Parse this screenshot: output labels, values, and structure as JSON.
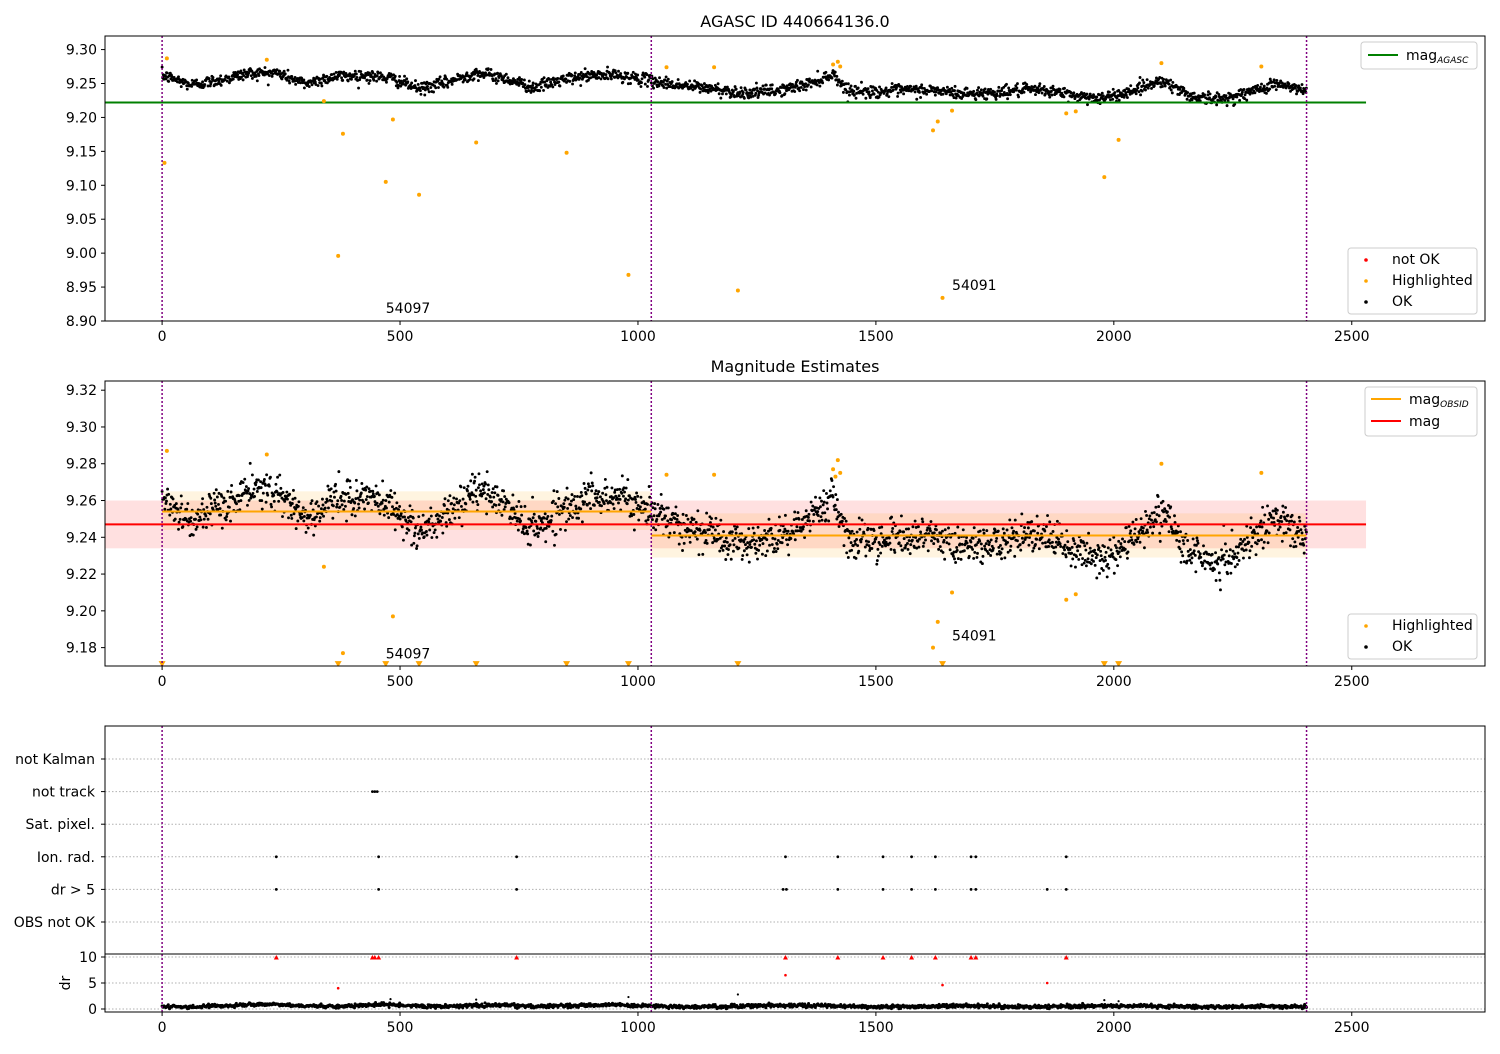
{
  "figure": {
    "width": 1500,
    "height": 1050,
    "colors": {
      "ok": "#000000",
      "highlighted": "#ffa500",
      "not_ok": "#ff0000",
      "mag_agasc": "#008000",
      "mag_obsid": "#ffa500",
      "mag": "#ff0000",
      "obsid_boundary": "#800080",
      "grid": "#b0b0b0"
    }
  },
  "chart_data": [
    {
      "id": "top",
      "type": "scatter",
      "title": "AGASC ID 440664136.0",
      "xlabel": "",
      "ylabel": "",
      "xlim": [
        -120,
        2780
      ],
      "ylim": [
        8.9,
        9.32
      ],
      "xticks": [
        0,
        500,
        1000,
        1500,
        2000,
        2500
      ],
      "yticks": [
        8.9,
        8.95,
        9.0,
        9.05,
        9.1,
        9.15,
        9.2,
        9.25,
        9.3
      ],
      "ytick_labels": [
        "8.90",
        "8.95",
        "9.00",
        "9.05",
        "9.10",
        "9.15",
        "9.20",
        "9.25",
        "9.30"
      ],
      "grid": false,
      "legend_upper": {
        "placement": "top-right",
        "entries": [
          {
            "label": "mag",
            "sub": "AGASC",
            "color": "#008000",
            "kind": "line"
          }
        ]
      },
      "legend_lower": {
        "placement": "bottom-right",
        "entries": [
          {
            "label": "not OK",
            "color": "#ff0000",
            "kind": "dot"
          },
          {
            "label": "Highlighted",
            "color": "#ffa500",
            "kind": "dot"
          },
          {
            "label": "OK",
            "color": "#000000",
            "kind": "dot"
          }
        ]
      },
      "obsid_boundaries": [
        0,
        1028,
        2405
      ],
      "lines": [
        {
          "name": "mag_AGASC",
          "x": [
            -120,
            2530
          ],
          "y": [
            9.222,
            9.222
          ]
        }
      ],
      "ok_segments": [
        {
          "x": [
            0,
            20,
            60,
            120,
            180,
            240,
            300,
            360,
            420,
            480,
            540,
            600,
            660,
            720,
            780,
            840,
            900,
            960,
            1028,
            1080,
            1150,
            1220,
            1300,
            1360,
            1410,
            1440,
            1500,
            1560,
            1620,
            1680,
            1740,
            1800,
            1860,
            1920,
            1980,
            2040,
            2100,
            2160,
            2220,
            2280,
            2340,
            2405
          ],
          "y": [
            9.262,
            9.258,
            9.248,
            9.255,
            9.265,
            9.266,
            9.25,
            9.26,
            9.262,
            9.258,
            9.242,
            9.252,
            9.266,
            9.258,
            9.244,
            9.255,
            9.262,
            9.262,
            9.254,
            9.248,
            9.243,
            9.236,
            9.24,
            9.25,
            9.264,
            9.24,
            9.238,
            9.24,
            9.24,
            9.235,
            9.236,
            9.24,
            9.24,
            9.232,
            9.228,
            9.24,
            9.255,
            9.232,
            9.226,
            9.236,
            9.25,
            9.238
          ],
          "spread": 0.008
        }
      ],
      "highlighted": {
        "x": [
          5,
          10,
          220,
          340,
          370,
          380,
          470,
          485,
          540,
          660,
          850,
          980,
          1060,
          1160,
          1210,
          1410,
          1420,
          1425,
          1620,
          1630,
          1640,
          1660,
          1900,
          1920,
          1980,
          2010,
          2100,
          2310
        ],
        "y": [
          9.133,
          9.287,
          9.285,
          9.224,
          8.996,
          9.176,
          9.105,
          9.197,
          9.086,
          9.163,
          9.148,
          8.968,
          9.274,
          9.274,
          8.945,
          9.278,
          9.282,
          9.275,
          9.181,
          9.194,
          8.934,
          9.21,
          9.206,
          9.209,
          9.112,
          9.167,
          9.28,
          9.275
        ]
      },
      "not_ok": {
        "x": [],
        "y": []
      },
      "annotations": [
        {
          "text": "54097",
          "x": 470,
          "y": 8.912
        },
        {
          "text": "54091",
          "x": 1660,
          "y": 8.946
        }
      ]
    },
    {
      "id": "middle",
      "type": "scatter",
      "title": "Magnitude Estimates",
      "xlabel": "",
      "ylabel": "",
      "xlim": [
        -120,
        2780
      ],
      "ylim": [
        9.17,
        9.325
      ],
      "xticks": [
        0,
        500,
        1000,
        1500,
        2000,
        2500
      ],
      "yticks": [
        9.18,
        9.2,
        9.22,
        9.24,
        9.26,
        9.28,
        9.3,
        9.32
      ],
      "ytick_labels": [
        "9.18",
        "9.20",
        "9.22",
        "9.24",
        "9.26",
        "9.28",
        "9.30",
        "9.32"
      ],
      "grid": false,
      "legend_upper": {
        "placement": "top-right",
        "entries": [
          {
            "label": "mag",
            "sub": "OBSID",
            "color": "#ffa500",
            "kind": "line"
          },
          {
            "label": "mag",
            "color": "#ff0000",
            "kind": "line"
          }
        ]
      },
      "legend_lower": {
        "placement": "bottom-right",
        "entries": [
          {
            "label": "Highlighted",
            "color": "#ffa500",
            "kind": "dot"
          },
          {
            "label": "OK",
            "color": "#000000",
            "kind": "dot"
          }
        ]
      },
      "obsid_boundaries": [
        0,
        1028,
        2405
      ],
      "bands": [
        {
          "name": "mag",
          "x": [
            -120,
            2530
          ],
          "y_low": 9.234,
          "y_high": 9.26,
          "color": "#ff0000",
          "opacity": 0.12
        },
        {
          "name": "mag_OBSID_1",
          "x": [
            0,
            1028
          ],
          "y_low": 9.244,
          "y_high": 9.265,
          "color": "#ffa500",
          "opacity": 0.12
        },
        {
          "name": "mag_OBSID_2",
          "x": [
            1028,
            2405
          ],
          "y_low": 9.229,
          "y_high": 9.253,
          "color": "#ffa500",
          "opacity": 0.12
        }
      ],
      "lines": [
        {
          "name": "mag",
          "x": [
            -120,
            2530
          ],
          "y": [
            9.247,
            9.247
          ],
          "color": "#ff0000"
        },
        {
          "name": "mag_OBSID_1",
          "x": [
            0,
            1028
          ],
          "y": [
            9.254,
            9.254
          ],
          "color": "#ffa500"
        },
        {
          "name": "mag_OBSID_2",
          "x": [
            1028,
            2405
          ],
          "y": [
            9.241,
            9.241
          ],
          "color": "#ffa500"
        }
      ],
      "ok_segments": [
        {
          "x": [
            0,
            20,
            60,
            120,
            180,
            240,
            300,
            360,
            420,
            480,
            540,
            600,
            660,
            720,
            780,
            840,
            900,
            960,
            1028,
            1080,
            1150,
            1220,
            1300,
            1360,
            1410,
            1440,
            1500,
            1560,
            1620,
            1680,
            1740,
            1800,
            1860,
            1920,
            1980,
            2040,
            2100,
            2160,
            2220,
            2280,
            2340,
            2405
          ],
          "y": [
            9.262,
            9.258,
            9.248,
            9.255,
            9.265,
            9.266,
            9.25,
            9.26,
            9.262,
            9.258,
            9.242,
            9.252,
            9.266,
            9.258,
            9.244,
            9.255,
            9.262,
            9.262,
            9.254,
            9.248,
            9.243,
            9.236,
            9.24,
            9.25,
            9.264,
            9.24,
            9.238,
            9.24,
            9.24,
            9.235,
            9.236,
            9.24,
            9.24,
            9.232,
            9.228,
            9.24,
            9.255,
            9.232,
            9.226,
            9.236,
            9.25,
            9.238
          ],
          "spread": 0.009
        }
      ],
      "highlighted": {
        "x": [
          10,
          220,
          340,
          380,
          485,
          1060,
          1160,
          1410,
          1415,
          1420,
          1425,
          1620,
          1630,
          1660,
          1900,
          1920,
          2100,
          2310
        ],
        "y": [
          9.287,
          9.285,
          9.224,
          9.177,
          9.197,
          9.274,
          9.274,
          9.277,
          9.273,
          9.282,
          9.275,
          9.18,
          9.194,
          9.21,
          9.206,
          9.209,
          9.28,
          9.275
        ]
      },
      "below_range_markers": {
        "x": [
          0,
          370,
          470,
          540,
          660,
          850,
          980,
          1210,
          1640,
          1980,
          2010
        ],
        "y_at": 9.171
      },
      "annotations": [
        {
          "text": "54097",
          "x": 470,
          "y": 9.174
        },
        {
          "text": "54091",
          "x": 1660,
          "y": 9.184
        }
      ]
    },
    {
      "id": "flags",
      "type": "scatter",
      "xlabel": "",
      "ylabel": "",
      "xlim": [
        -120,
        2780
      ],
      "grid": true,
      "categories": [
        "not Kalman",
        "not track",
        "Sat. pixel.",
        "Ion. rad.",
        "dr > 5",
        "OBS not OK"
      ],
      "obsid_boundaries": [
        0,
        1028,
        2405
      ],
      "points": [
        {
          "category": "not track",
          "x": [
            442,
            447,
            452
          ]
        },
        {
          "category": "Ion. rad.",
          "x": [
            240,
            455,
            745,
            1310,
            1420,
            1515,
            1575,
            1625,
            1700,
            1710,
            1900
          ]
        },
        {
          "category": "dr > 5",
          "x": [
            240,
            455,
            745,
            1305,
            1312,
            1420,
            1515,
            1575,
            1625,
            1700,
            1710,
            1860,
            1900
          ]
        }
      ]
    },
    {
      "id": "dr",
      "type": "scatter",
      "xlabel": "",
      "ylabel": "dr",
      "xlim": [
        -120,
        2780
      ],
      "ylim": [
        0,
        10
      ],
      "yticks": [
        0,
        5,
        10
      ],
      "ytick_labels": [
        "0",
        "5",
        "10"
      ],
      "xticks": [
        0,
        500,
        1000,
        1500,
        2000,
        2500
      ],
      "grid": true,
      "obsid_boundaries": [
        0,
        1028,
        2405
      ],
      "baseline": {
        "x": [
          0,
          60,
          120,
          180,
          240,
          300,
          360,
          420,
          480,
          540,
          600,
          660,
          720,
          780,
          840,
          900,
          960,
          1028,
          1100,
          1200,
          1300,
          1400,
          1500,
          1600,
          1700,
          1800,
          1900,
          2000,
          2100,
          2200,
          2300,
          2405
        ],
        "y": [
          0.5,
          0.4,
          0.6,
          0.8,
          0.9,
          0.6,
          0.5,
          0.7,
          0.9,
          0.6,
          0.5,
          0.7,
          0.8,
          0.5,
          0.6,
          0.7,
          0.8,
          0.6,
          0.4,
          0.5,
          0.7,
          0.6,
          0.4,
          0.5,
          0.6,
          0.4,
          0.5,
          0.6,
          0.5,
          0.4,
          0.5,
          0.4
        ],
        "spread": 0.35
      },
      "ok_points": {
        "x": [
          480,
          660,
          980,
          1210,
          1980,
          2010
        ],
        "y": [
          1.9,
          1.8,
          2.3,
          2.8,
          1.7,
          1.5
        ]
      },
      "not_ok_points": {
        "x": [
          370,
          1310,
          1640,
          1860
        ],
        "y": [
          4.0,
          6.5,
          4.6,
          5.0
        ]
      },
      "capped_markers": {
        "x": [
          240,
          442,
          447,
          455,
          745,
          1310,
          1420,
          1515,
          1575,
          1625,
          1700,
          1710,
          1900
        ],
        "y_at": 9.9
      }
    }
  ]
}
